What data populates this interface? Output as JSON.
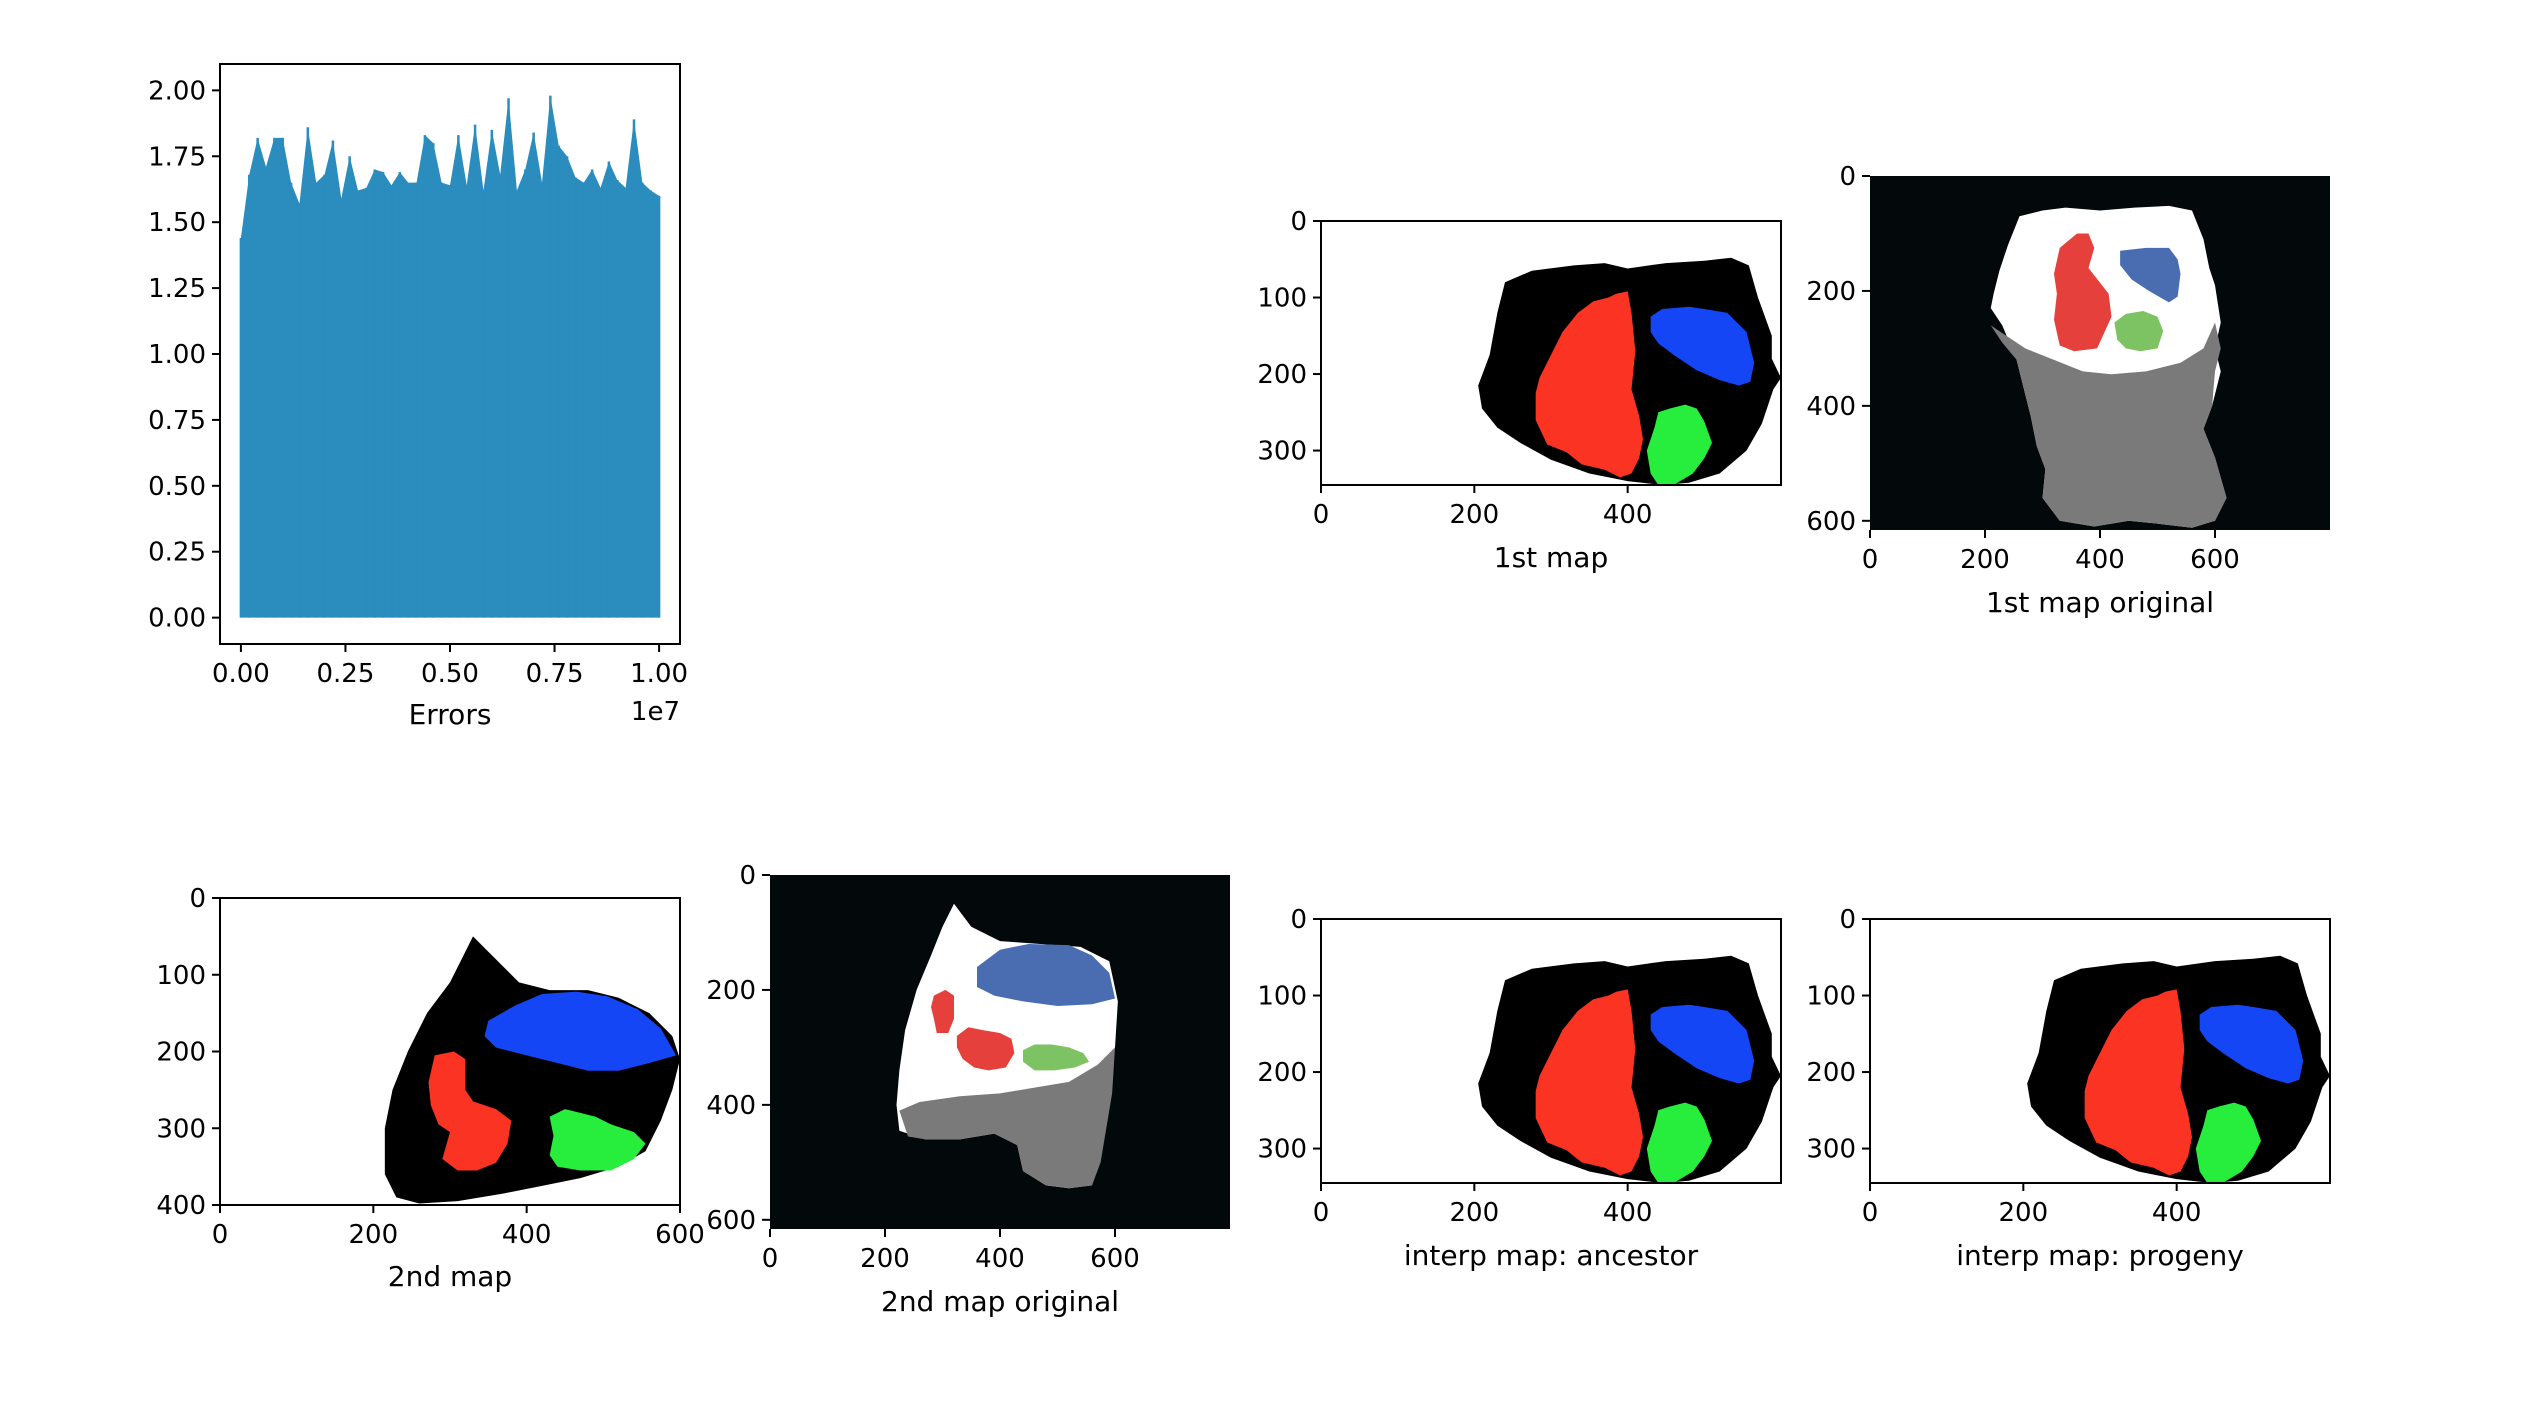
{
  "chart_data": [
    {
      "type": "area",
      "xlabel": "Errors",
      "offset_text": "1e7",
      "xlim": [
        -0.05,
        1.05
      ],
      "ylim": [
        -0.1,
        2.1
      ],
      "x_ticks": [
        0.0,
        0.25,
        0.5,
        0.75,
        1.0
      ],
      "x_tick_labels": [
        "0.00",
        "0.25",
        "0.50",
        "0.75",
        "1.00"
      ],
      "y_ticks": [
        0.0,
        0.25,
        0.5,
        0.75,
        1.0,
        1.25,
        1.5,
        1.75,
        2.0
      ],
      "y_tick_labels": [
        "0.00",
        "0.25",
        "0.50",
        "0.75",
        "1.00",
        "1.25",
        "1.50",
        "1.75",
        "2.00"
      ],
      "color": "#2b8cbe",
      "series": [
        {
          "x": [
            0.0,
            0.02,
            0.04,
            0.06,
            0.08,
            0.1,
            0.12,
            0.14,
            0.16,
            0.18,
            0.2,
            0.22,
            0.24,
            0.26,
            0.28,
            0.3,
            0.32,
            0.34,
            0.36,
            0.38,
            0.4,
            0.42,
            0.44,
            0.46,
            0.48,
            0.5,
            0.52,
            0.54,
            0.56,
            0.58,
            0.6,
            0.62,
            0.64,
            0.66,
            0.68,
            0.7,
            0.72,
            0.74,
            0.76,
            0.78,
            0.8,
            0.82,
            0.84,
            0.86,
            0.88,
            0.9,
            0.92,
            0.94,
            0.96,
            0.98,
            1.0
          ],
          "y": [
            1.44,
            1.68,
            1.82,
            1.71,
            1.82,
            1.82,
            1.65,
            1.57,
            1.86,
            1.65,
            1.68,
            1.81,
            1.59,
            1.75,
            1.62,
            1.63,
            1.7,
            1.69,
            1.64,
            1.69,
            1.65,
            1.65,
            1.83,
            1.8,
            1.65,
            1.64,
            1.83,
            1.64,
            1.87,
            1.62,
            1.85,
            1.68,
            1.97,
            1.62,
            1.7,
            1.84,
            1.65,
            1.98,
            1.79,
            1.75,
            1.67,
            1.65,
            1.7,
            1.63,
            1.73,
            1.66,
            1.63,
            1.89,
            1.65,
            1.62,
            1.6
          ]
        }
      ]
    },
    {
      "type": "image",
      "xlabel": "1st map",
      "x_tick_labels": [
        "0",
        "200",
        "400"
      ],
      "y_tick_labels": [
        "0",
        "100",
        "200",
        "300"
      ],
      "x_ticks": [
        0,
        200,
        400
      ],
      "y_ticks": [
        0,
        100,
        200,
        300
      ],
      "extent": [
        600,
        345
      ]
    },
    {
      "type": "image",
      "xlabel": "1st map original",
      "x_tick_labels": [
        "0",
        "200",
        "400",
        "600"
      ],
      "y_tick_labels": [
        "0",
        "200",
        "400",
        "600"
      ],
      "x_ticks": [
        0,
        200,
        400,
        600
      ],
      "y_ticks": [
        0,
        200,
        400,
        600
      ],
      "extent": [
        800,
        616
      ]
    },
    {
      "type": "image",
      "xlabel": "2nd map",
      "x_tick_labels": [
        "0",
        "200",
        "400",
        "600"
      ],
      "y_tick_labels": [
        "0",
        "100",
        "200",
        "300",
        "400"
      ],
      "x_ticks": [
        0,
        200,
        400,
        600
      ],
      "y_ticks": [
        0,
        100,
        200,
        300,
        400
      ],
      "extent": [
        600,
        400
      ]
    },
    {
      "type": "image",
      "xlabel": "2nd map original",
      "x_tick_labels": [
        "0",
        "200",
        "400",
        "600"
      ],
      "y_tick_labels": [
        "0",
        "200",
        "400",
        "600"
      ],
      "x_ticks": [
        0,
        200,
        400,
        600
      ],
      "y_ticks": [
        0,
        200,
        400,
        600
      ],
      "extent": [
        800,
        616
      ]
    },
    {
      "type": "image",
      "xlabel": "interp map: ancestor",
      "x_tick_labels": [
        "0",
        "200",
        "400"
      ],
      "y_tick_labels": [
        "0",
        "100",
        "200",
        "300"
      ],
      "x_ticks": [
        0,
        200,
        400
      ],
      "y_ticks": [
        0,
        100,
        200,
        300
      ],
      "extent": [
        600,
        345
      ]
    },
    {
      "type": "image",
      "xlabel": "interp map: progeny",
      "x_tick_labels": [
        "0",
        "200",
        "400"
      ],
      "y_tick_labels": [
        "0",
        "100",
        "200",
        "300"
      ],
      "x_ticks": [
        0,
        200,
        400
      ],
      "y_ticks": [
        0,
        100,
        200,
        300
      ],
      "extent": [
        600,
        345
      ]
    }
  ],
  "colors": {
    "axis": "#000000",
    "bar": "#2b8cbe",
    "region_red": "#fa3323",
    "region_blue": "#1446f5",
    "region_green": "#27ee3c",
    "region_black": "#000000",
    "orig_bg": "#03080a",
    "orig_white": "#ffffff",
    "orig_gray": "#7a7a7a",
    "orig_red": "#e6403c",
    "orig_blue": "#4a6db1",
    "orig_green": "#7dc363"
  }
}
